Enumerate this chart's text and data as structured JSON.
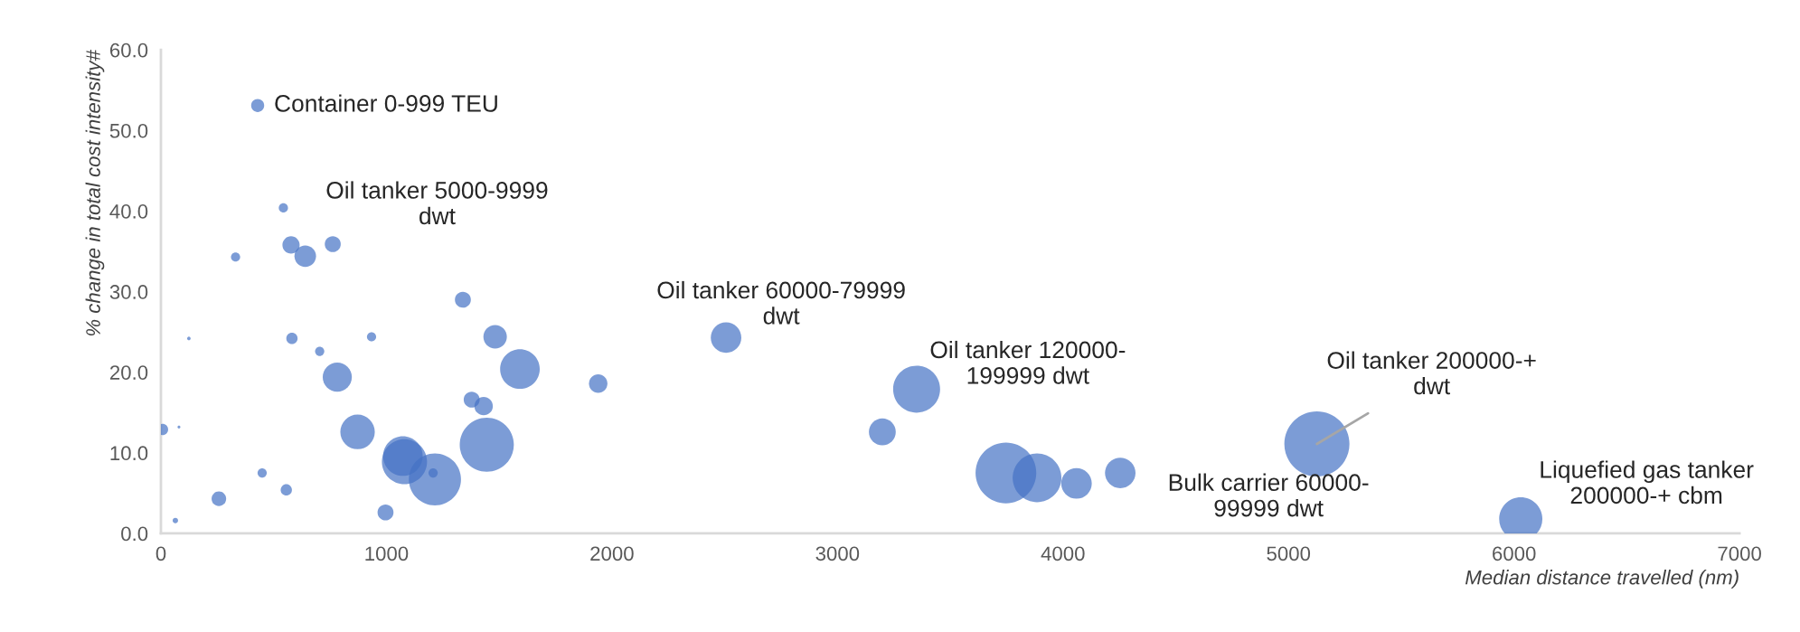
{
  "chart_data": {
    "type": "bubble",
    "xlabel": "Median distance travelled (nm)",
    "ylabel": "% change in total cost intensity#",
    "x": [
      429,
      543,
      577,
      640,
      762,
      331,
      1339,
      124,
      581,
      934,
      704,
      1482,
      1592,
      782,
      1378,
      1431,
      7,
      80,
      872,
      1445,
      1080,
      1073,
      1215,
      1207,
      449,
      556,
      257,
      996,
      64,
      2506,
      1939,
      3351,
      3199,
      3747,
      3885,
      4060,
      4254,
      5126,
      6030
    ],
    "values": [
      53.1,
      40.4,
      35.8,
      34.4,
      35.9,
      34.3,
      29.0,
      24.2,
      24.2,
      24.4,
      22.6,
      24.4,
      20.4,
      19.4,
      16.6,
      15.8,
      12.9,
      13.2,
      12.6,
      11.0,
      8.9,
      9.6,
      6.7,
      7.5,
      7.5,
      5.4,
      4.3,
      2.6,
      1.6,
      24.3,
      18.6,
      17.9,
      12.6,
      7.5,
      6.9,
      6.2,
      7.5,
      11.1,
      1.8
    ],
    "sizes": [
      0.04,
      0.02,
      0.07,
      0.11,
      0.06,
      0.02,
      0.06,
      0.003,
      0.03,
      0.02,
      0.02,
      0.13,
      0.37,
      0.2,
      0.06,
      0.08,
      0.03,
      0.002,
      0.28,
      0.69,
      0.48,
      0.37,
      0.64,
      0.02,
      0.02,
      0.03,
      0.05,
      0.06,
      0.007,
      0.22,
      0.08,
      0.52,
      0.17,
      0.87,
      0.56,
      0.22,
      0.22,
      1,
      0.44
    ],
    "color": "#4472c4",
    "xlim": [
      0,
      7000
    ],
    "xticks": [
      0,
      1000,
      2000,
      3000,
      4000,
      5000,
      6000,
      7000
    ],
    "ylim": [
      0,
      60
    ],
    "yticks": [
      {
        "value": 0,
        "label": "0.0"
      },
      {
        "value": 10,
        "label": "10.0"
      },
      {
        "value": 20,
        "label": "20.0"
      },
      {
        "value": 30,
        "label": "30.0"
      },
      {
        "value": 40,
        "label": "40.0"
      },
      {
        "value": 50,
        "label": "50.0"
      },
      {
        "value": 60,
        "label": "60.0"
      }
    ],
    "grid": false,
    "legend": false,
    "annotations": [
      {
        "text": "Container 0-999 TEU",
        "x": 429,
        "y": 53.1
      },
      {
        "text": "Oil tanker 5000-9999\ndwt",
        "x": 543,
        "y": 40.4
      },
      {
        "text": "Oil tanker 60000-79999\ndwt",
        "x": 2506,
        "y": 24.3
      },
      {
        "text": "Oil tanker 120000-\n199999 dwt",
        "x": 3351,
        "y": 17.9
      },
      {
        "text": "Oil tanker 200000-+\ndwt",
        "x": 5126,
        "y": 11.1
      },
      {
        "text": "Bulk carrier 60000-\n99999 dwt",
        "x": 4254,
        "y": 7.5
      },
      {
        "text": "Liquefied gas tanker\n200000-+ cbm",
        "x": 6030,
        "y": 1.8
      }
    ]
  }
}
